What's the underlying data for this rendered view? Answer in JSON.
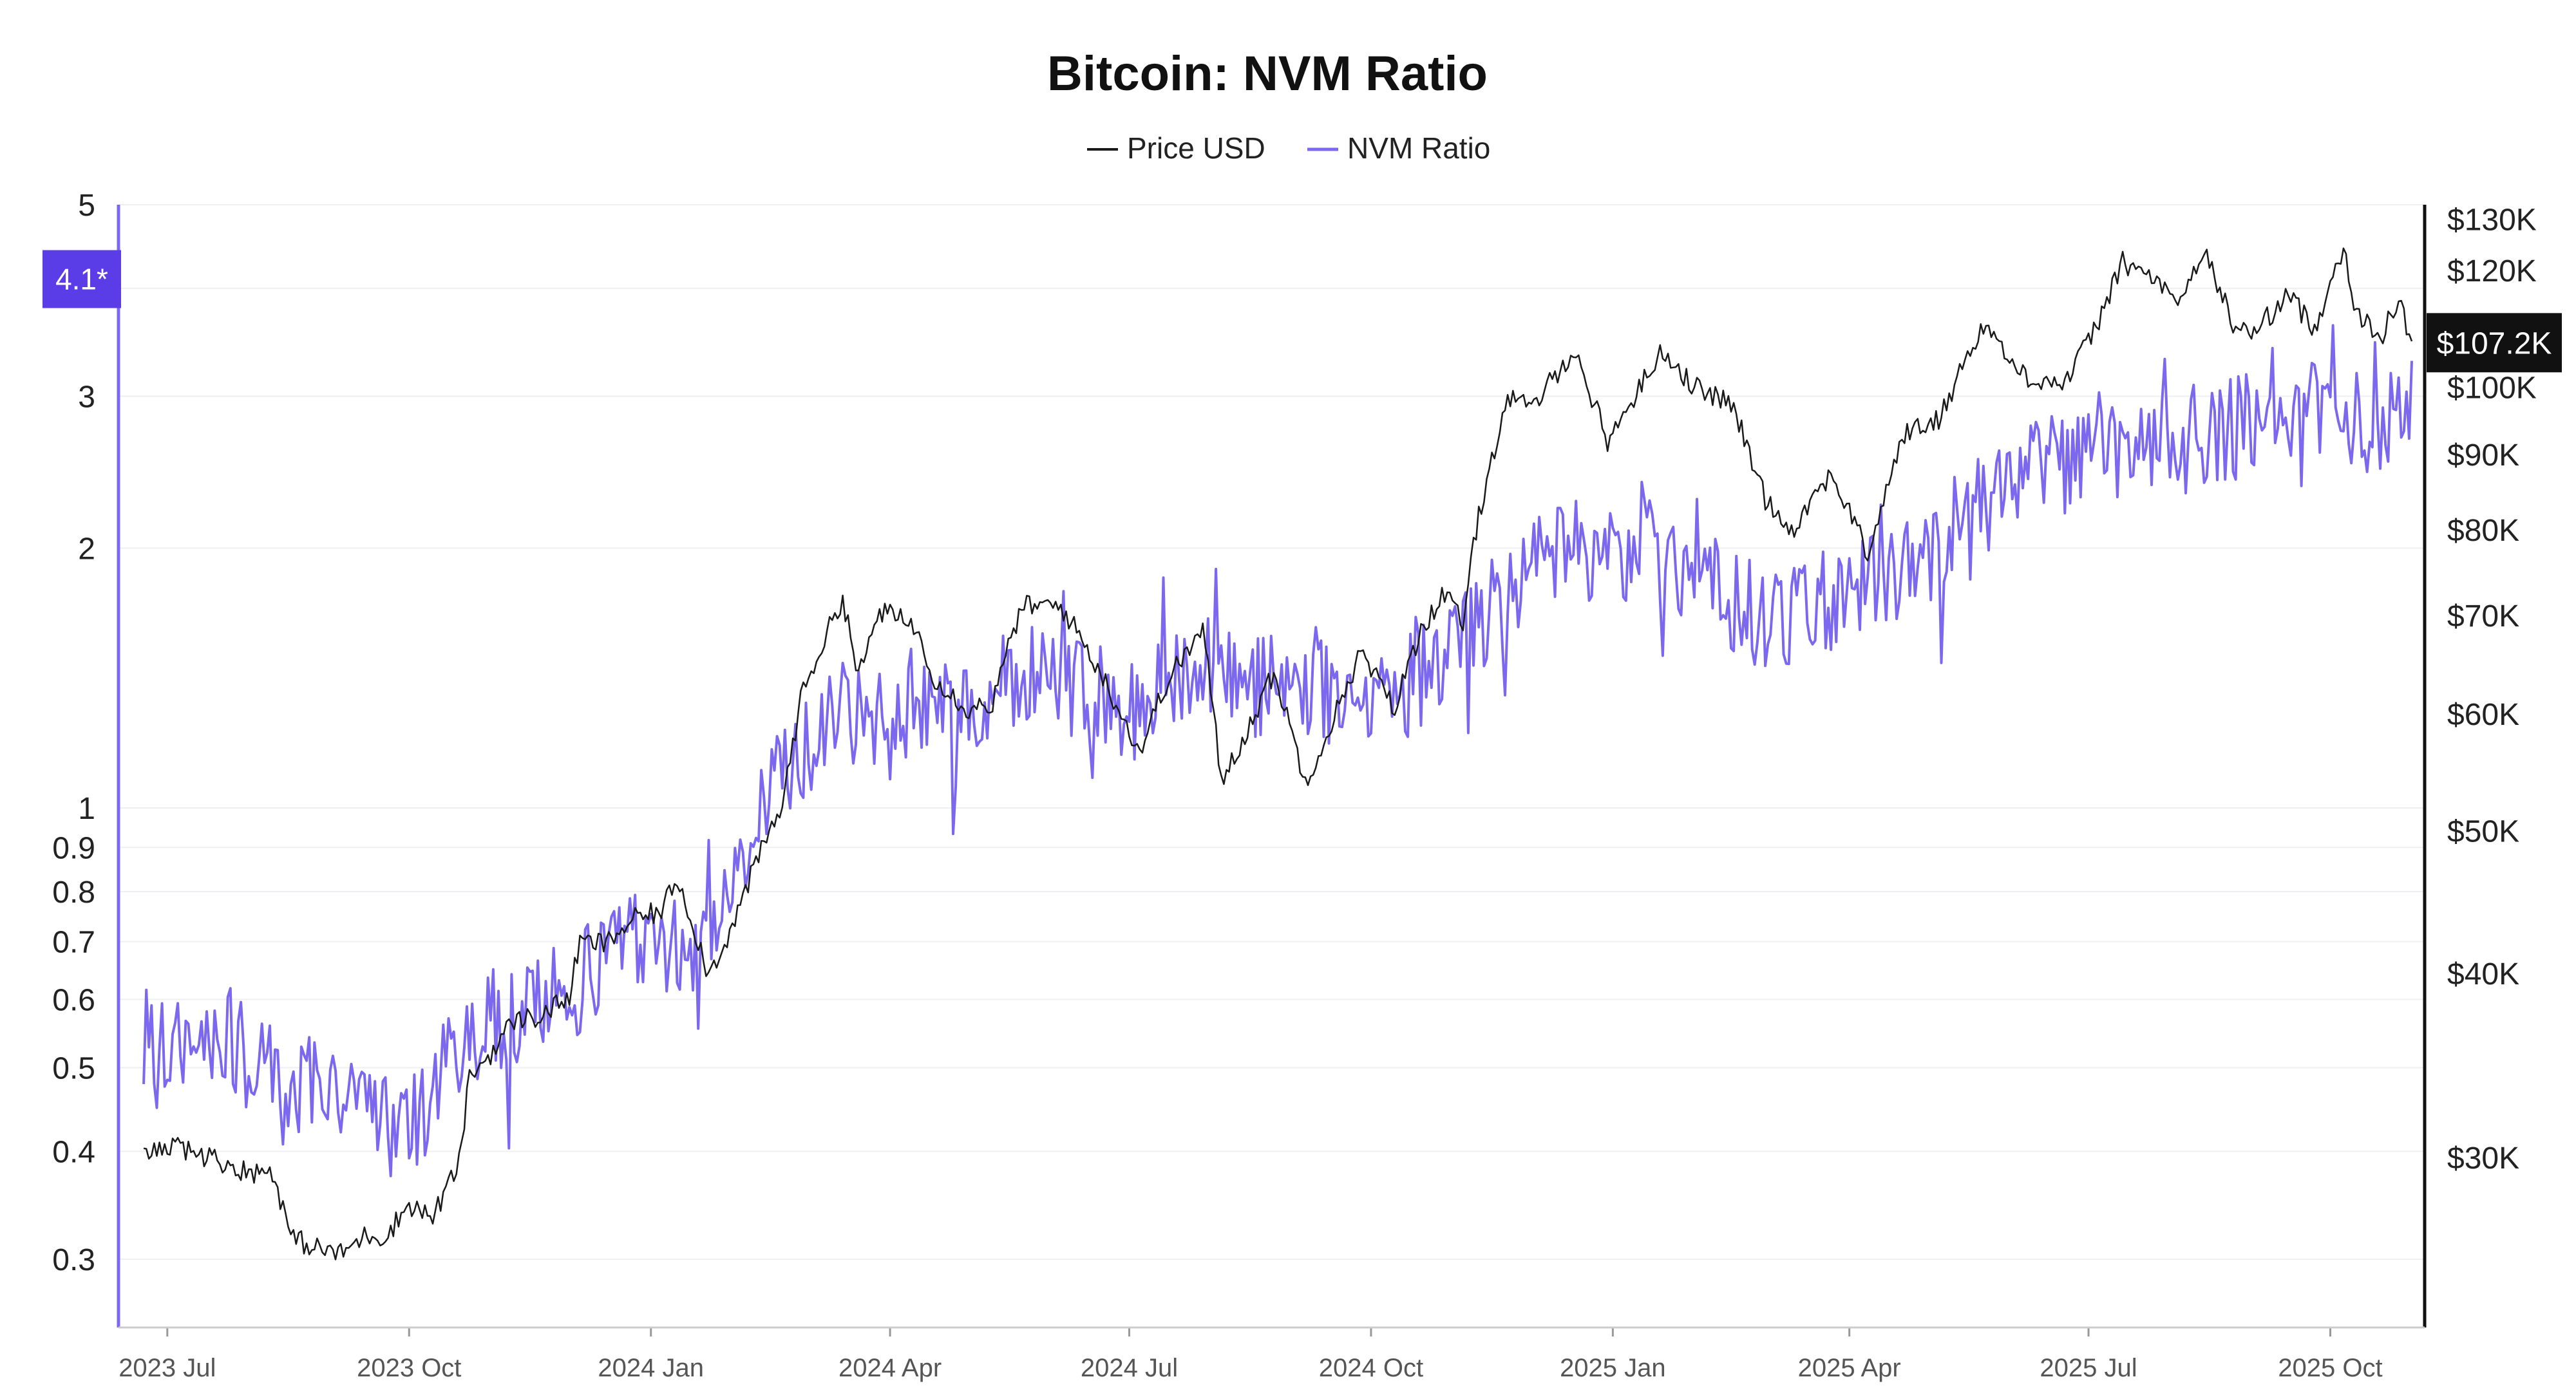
{
  "chart_data": {
    "type": "line",
    "title": "Bitcoin: NVM Ratio",
    "legend": [
      {
        "name": "Price USD",
        "color": "#1a1a1a"
      },
      {
        "name": "NVM Ratio",
        "color": "#7b68ee"
      }
    ],
    "legend_position": "top-center",
    "x_ticks": [
      {
        "label": "2023 Jul",
        "date": "2023-07-01"
      },
      {
        "label": "2023 Oct",
        "date": "2023-10-01"
      },
      {
        "label": "2024 Jan",
        "date": "2024-01-01"
      },
      {
        "label": "2024 Apr",
        "date": "2024-04-01"
      },
      {
        "label": "2024 Jul",
        "date": "2024-07-01"
      },
      {
        "label": "2024 Oct",
        "date": "2024-10-01"
      },
      {
        "label": "2025 Jan",
        "date": "2025-01-01"
      },
      {
        "label": "2025 Apr",
        "date": "2025-04-01"
      },
      {
        "label": "2025 Jul",
        "date": "2025-07-01"
      },
      {
        "label": "2025 Oct",
        "date": "2025-10-01"
      }
    ],
    "x_range": [
      "2023-06-21",
      "2025-11-01"
    ],
    "left_axis": {
      "scale": "log",
      "range": [
        0.25,
        5
      ],
      "ticks": [
        {
          "value": 5,
          "label": "5"
        },
        {
          "value": 3,
          "label": "3"
        },
        {
          "value": 2,
          "label": "2"
        },
        {
          "value": 1,
          "label": "1"
        },
        {
          "value": 0.9,
          "label": "0.9"
        },
        {
          "value": 0.8,
          "label": "0.8"
        },
        {
          "value": 0.7,
          "label": "0.7"
        },
        {
          "value": 0.6,
          "label": "0.6"
        },
        {
          "value": 0.5,
          "label": "0.5"
        },
        {
          "value": 0.4,
          "label": "0.4"
        },
        {
          "value": 0.3,
          "label": "0.3"
        }
      ],
      "gridlines": [
        5,
        4,
        3,
        2,
        1,
        0.9,
        0.8,
        0.7,
        0.6,
        0.5,
        0.4,
        0.3
      ],
      "current_marker": {
        "value": 4.1,
        "label": "4.1*",
        "color": "#5b3de8"
      }
    },
    "right_axis": {
      "scale": "log",
      "range": [
        23000,
        133000
      ],
      "ticks": [
        {
          "value": 130000,
          "label": "$130K"
        },
        {
          "value": 120000,
          "label": "$120K"
        },
        {
          "value": 100000,
          "label": "$100K"
        },
        {
          "value": 90000,
          "label": "$90K"
        },
        {
          "value": 80000,
          "label": "$80K"
        },
        {
          "value": 70000,
          "label": "$70K"
        },
        {
          "value": 60000,
          "label": "$60K"
        },
        {
          "value": 50000,
          "label": "$50K"
        },
        {
          "value": 40000,
          "label": "$40K"
        },
        {
          "value": 30000,
          "label": "$30K"
        }
      ],
      "current_marker": {
        "value": 107200,
        "label": "$107.2K",
        "color": "#111111"
      }
    },
    "series": [
      {
        "name": "Price USD",
        "axis": "right",
        "points": [
          [
            "2023-06-22",
            30100
          ],
          [
            "2023-07-01",
            30500
          ],
          [
            "2023-07-10",
            30300
          ],
          [
            "2023-07-20",
            29900
          ],
          [
            "2023-08-01",
            29300
          ],
          [
            "2023-08-10",
            29400
          ],
          [
            "2023-08-17",
            26500
          ],
          [
            "2023-08-25",
            26100
          ],
          [
            "2023-09-05",
            25800
          ],
          [
            "2023-09-15",
            26600
          ],
          [
            "2023-09-22",
            26500
          ],
          [
            "2023-10-01",
            27900
          ],
          [
            "2023-10-10",
            27300
          ],
          [
            "2023-10-20",
            29700
          ],
          [
            "2023-10-24",
            34000
          ],
          [
            "2023-11-01",
            35300
          ],
          [
            "2023-11-10",
            37200
          ],
          [
            "2023-11-20",
            37400
          ],
          [
            "2023-12-01",
            38600
          ],
          [
            "2023-12-05",
            42000
          ],
          [
            "2023-12-15",
            41900
          ],
          [
            "2023-12-25",
            43500
          ],
          [
            "2024-01-05",
            44100
          ],
          [
            "2024-01-11",
            46500
          ],
          [
            "2024-01-23",
            39900
          ],
          [
            "2024-02-01",
            43000
          ],
          [
            "2024-02-10",
            47500
          ],
          [
            "2024-02-20",
            52000
          ],
          [
            "2024-02-28",
            62500
          ],
          [
            "2024-03-05",
            66000
          ],
          [
            "2024-03-14",
            72000
          ],
          [
            "2024-03-20",
            63500
          ],
          [
            "2024-03-28",
            70500
          ],
          [
            "2024-04-10",
            69000
          ],
          [
            "2024-04-18",
            63500
          ],
          [
            "2024-04-30",
            60500
          ],
          [
            "2024-05-10",
            61000
          ],
          [
            "2024-05-21",
            71000
          ],
          [
            "2024-06-05",
            71000
          ],
          [
            "2024-06-15",
            66500
          ],
          [
            "2024-06-25",
            61500
          ],
          [
            "2024-07-05",
            56500
          ],
          [
            "2024-07-15",
            63000
          ],
          [
            "2024-07-29",
            68500
          ],
          [
            "2024-08-05",
            54000
          ],
          [
            "2024-08-15",
            58500
          ],
          [
            "2024-08-25",
            64000
          ],
          [
            "2024-09-06",
            54000
          ],
          [
            "2024-09-15",
            58500
          ],
          [
            "2024-09-27",
            66000
          ],
          [
            "2024-10-10",
            60500
          ],
          [
            "2024-10-20",
            68500
          ],
          [
            "2024-10-29",
            72500
          ],
          [
            "2024-11-05",
            69000
          ],
          [
            "2024-11-10",
            80000
          ],
          [
            "2024-11-15",
            88000
          ],
          [
            "2024-11-22",
            98500
          ],
          [
            "2024-12-01",
            96500
          ],
          [
            "2024-12-17",
            106000
          ],
          [
            "2024-12-30",
            92000
          ],
          [
            "2025-01-07",
            97000
          ],
          [
            "2025-01-20",
            106000
          ],
          [
            "2025-02-01",
            100000
          ],
          [
            "2025-02-15",
            97500
          ],
          [
            "2025-02-28",
            84000
          ],
          [
            "2025-03-10",
            80000
          ],
          [
            "2025-03-25",
            87500
          ],
          [
            "2025-04-08",
            77000
          ],
          [
            "2025-04-22",
            93000
          ],
          [
            "2025-05-05",
            95000
          ],
          [
            "2025-05-22",
            110500
          ],
          [
            "2025-06-05",
            102000
          ],
          [
            "2025-06-22",
            100500
          ],
          [
            "2025-07-03",
            109000
          ],
          [
            "2025-07-14",
            121500
          ],
          [
            "2025-07-28",
            118000
          ],
          [
            "2025-08-03",
            113000
          ],
          [
            "2025-08-14",
            123500
          ],
          [
            "2025-08-25",
            110500
          ],
          [
            "2025-09-01",
            108500
          ],
          [
            "2025-09-15",
            115500
          ],
          [
            "2025-09-25",
            109500
          ],
          [
            "2025-10-06",
            124700
          ],
          [
            "2025-10-11",
            112000
          ],
          [
            "2025-10-20",
            108000
          ],
          [
            "2025-10-27",
            114500
          ],
          [
            "2025-11-01",
            107200
          ]
        ]
      },
      {
        "name": "NVM Ratio",
        "axis": "left",
        "points": [
          [
            "2023-06-22",
            0.55
          ],
          [
            "2023-07-01",
            0.52
          ],
          [
            "2023-07-15",
            0.55
          ],
          [
            "2023-08-01",
            0.52
          ],
          [
            "2023-08-15",
            0.47
          ],
          [
            "2023-09-01",
            0.49
          ],
          [
            "2023-09-15",
            0.44
          ],
          [
            "2023-10-01",
            0.42
          ],
          [
            "2023-10-15",
            0.5
          ],
          [
            "2023-11-01",
            0.57
          ],
          [
            "2023-11-15",
            0.58
          ],
          [
            "2023-12-01",
            0.62
          ],
          [
            "2023-12-15",
            0.68
          ],
          [
            "2024-01-01",
            0.72
          ],
          [
            "2024-01-15",
            0.7
          ],
          [
            "2024-02-01",
            0.78
          ],
          [
            "2024-02-15",
            1.05
          ],
          [
            "2024-03-01",
            1.2
          ],
          [
            "2024-03-15",
            1.3
          ],
          [
            "2024-04-01",
            1.25
          ],
          [
            "2024-04-15",
            1.35
          ],
          [
            "2024-05-01",
            1.32
          ],
          [
            "2024-05-15",
            1.4
          ],
          [
            "2024-06-01",
            1.45
          ],
          [
            "2024-06-15",
            1.38
          ],
          [
            "2024-07-01",
            1.3
          ],
          [
            "2024-07-15",
            1.45
          ],
          [
            "2024-08-01",
            1.48
          ],
          [
            "2024-08-15",
            1.4
          ],
          [
            "2024-09-01",
            1.4
          ],
          [
            "2024-09-15",
            1.38
          ],
          [
            "2024-10-01",
            1.35
          ],
          [
            "2024-10-15",
            1.4
          ],
          [
            "2024-11-01",
            1.55
          ],
          [
            "2024-11-15",
            1.7
          ],
          [
            "2024-12-01",
            1.9
          ],
          [
            "2024-12-15",
            2.0
          ],
          [
            "2025-01-01",
            1.95
          ],
          [
            "2025-01-15",
            2.05
          ],
          [
            "2025-02-01",
            1.9
          ],
          [
            "2025-02-15",
            1.75
          ],
          [
            "2025-03-01",
            1.65
          ],
          [
            "2025-03-15",
            1.7
          ],
          [
            "2025-04-01",
            1.8
          ],
          [
            "2025-04-15",
            1.85
          ],
          [
            "2025-05-01",
            2.0
          ],
          [
            "2025-05-15",
            2.2
          ],
          [
            "2025-06-01",
            2.4
          ],
          [
            "2025-06-15",
            2.5
          ],
          [
            "2025-07-01",
            2.55
          ],
          [
            "2025-07-15",
            2.6
          ],
          [
            "2025-08-01",
            2.65
          ],
          [
            "2025-08-15",
            2.75
          ],
          [
            "2025-09-01",
            2.8
          ],
          [
            "2025-09-15",
            2.85
          ],
          [
            "2025-10-01",
            2.9
          ],
          [
            "2025-10-15",
            2.8
          ],
          [
            "2025-11-01",
            3.0
          ]
        ],
        "daily_volatility_pct": 14,
        "note": "values read from the smoothed trend of a highly volatile daily series"
      }
    ]
  }
}
